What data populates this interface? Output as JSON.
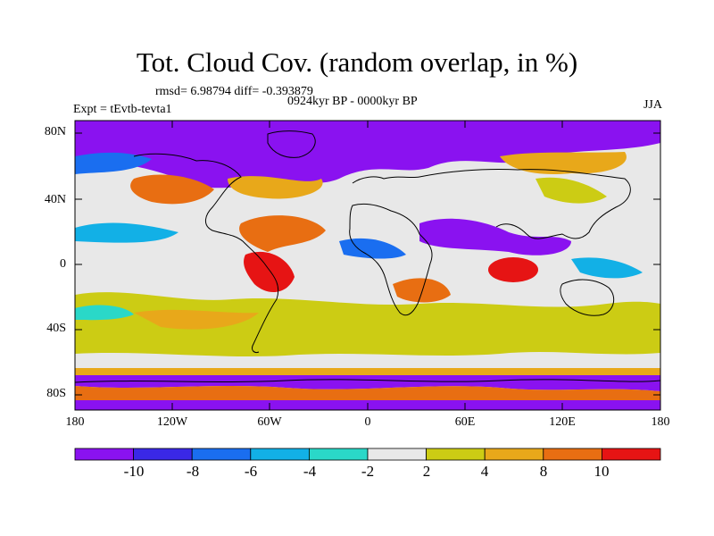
{
  "title": "Tot. Cloud Cov. (random overlap, in %)",
  "stats": "rmsd= 6.98794 diff= -0.393879",
  "period": "0924kyr BP - 0000kyr BP",
  "experiment": "Expt = tEvtb-tevta1",
  "season": "JJA",
  "lat_ticks": [
    "80N",
    "40N",
    "0",
    "40S",
    "80S"
  ],
  "lon_ticks": [
    "180",
    "120W",
    "60W",
    "0",
    "60E",
    "120E",
    "180"
  ],
  "colorbar": {
    "labels": [
      "-10",
      "-8",
      "-6",
      "-4",
      "-2",
      "2",
      "4",
      "8",
      "10"
    ],
    "colors": [
      "#8a12f0",
      "#3a28e6",
      "#1a6ef0",
      "#12b0e6",
      "#2ad8c8",
      "#e8e8e8",
      "#cccc14",
      "#e8a81a",
      "#e86e12",
      "#e61414"
    ]
  }
}
